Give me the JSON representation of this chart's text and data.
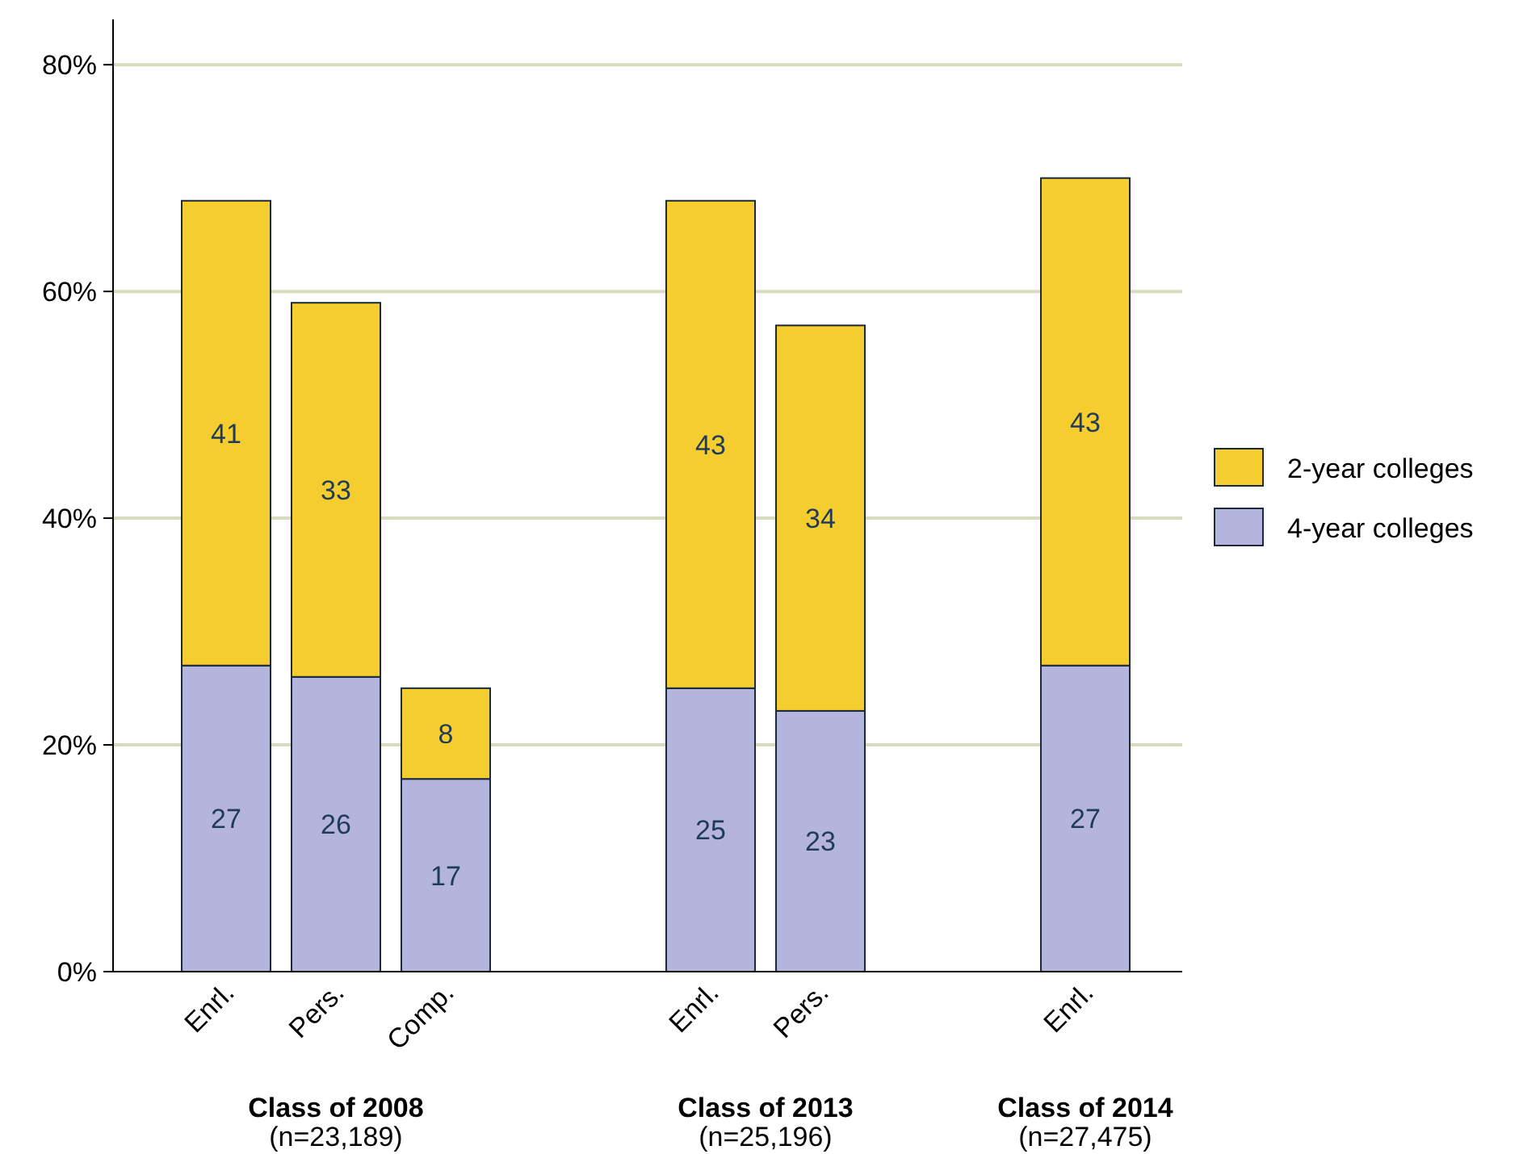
{
  "chart_data": {
    "type": "bar",
    "stacked": true,
    "categories": [
      "Enrl.",
      "Pers.",
      "Comp.",
      null,
      "Enrl.",
      "Pers.",
      null,
      "Enrl."
    ],
    "series": [
      {
        "name": "4-year colleges",
        "color": "#b4b4dc",
        "values": [
          27,
          26,
          17,
          null,
          25,
          23,
          null,
          27
        ]
      },
      {
        "name": "2-year colleges",
        "color": "#f5cd2f",
        "values": [
          41,
          33,
          8,
          null,
          43,
          34,
          null,
          43
        ]
      }
    ],
    "ylim": [
      0,
      84
    ],
    "yticks": [
      {
        "value": 0,
        "label": "0%"
      },
      {
        "value": 20,
        "label": "20%"
      },
      {
        "value": 40,
        "label": "40%"
      },
      {
        "value": 60,
        "label": "60%"
      },
      {
        "value": 80,
        "label": "80%"
      }
    ],
    "grid": "y",
    "legend": "right",
    "data_labels": true,
    "annotations": [
      "Class of 2008",
      "(n=23,189)",
      "Class of 2013",
      "(n=25,196)",
      "Class of 2014",
      "(n=27,475)"
    ]
  }
}
